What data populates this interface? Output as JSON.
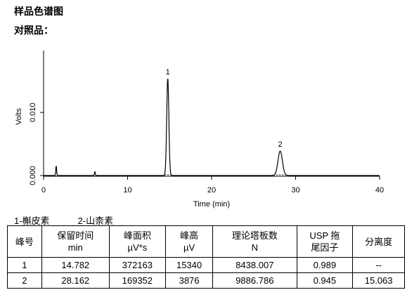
{
  "header": {
    "title": "样品色谱图",
    "subtitle": "对照品："
  },
  "chart": {
    "type": "line",
    "xlabel": "Time (min)",
    "ylabel": "Volts",
    "xlim": [
      0,
      40
    ],
    "xticks": [
      0,
      10,
      20,
      30,
      40
    ],
    "ylim": [
      0,
      0.0198
    ],
    "yticks": [
      {
        "value": 0,
        "label": "0.000"
      },
      {
        "value": 0.01,
        "label": "0.010"
      }
    ],
    "color": "#000000",
    "peaks": [
      {
        "label": null,
        "x": 1.5,
        "y": 0.0015
      },
      {
        "label": null,
        "x": 6.1,
        "y": 0.0006
      },
      {
        "label": "1",
        "x": 14.782,
        "y": 0.01534
      },
      {
        "label": "2",
        "x": 28.162,
        "y": 0.003876
      }
    ]
  },
  "legend": [
    "1-槲皮素",
    "2-山柰素"
  ],
  "table": {
    "header": [
      [
        "峰号"
      ],
      [
        "保留时间",
        "min"
      ],
      [
        "峰面积",
        "µV*s"
      ],
      [
        "峰高",
        "µV"
      ],
      [
        "理论塔板数",
        "N"
      ],
      [
        "USP 拖",
        "尾因子"
      ],
      [
        "分离度"
      ]
    ],
    "rows": [
      [
        "1",
        "14.782",
        "372163",
        "15340",
        "8438.007",
        "0.989",
        "--"
      ],
      [
        "2",
        "28.162",
        "169352",
        "3876",
        "9886.786",
        "0.945",
        "15.063"
      ]
    ]
  }
}
